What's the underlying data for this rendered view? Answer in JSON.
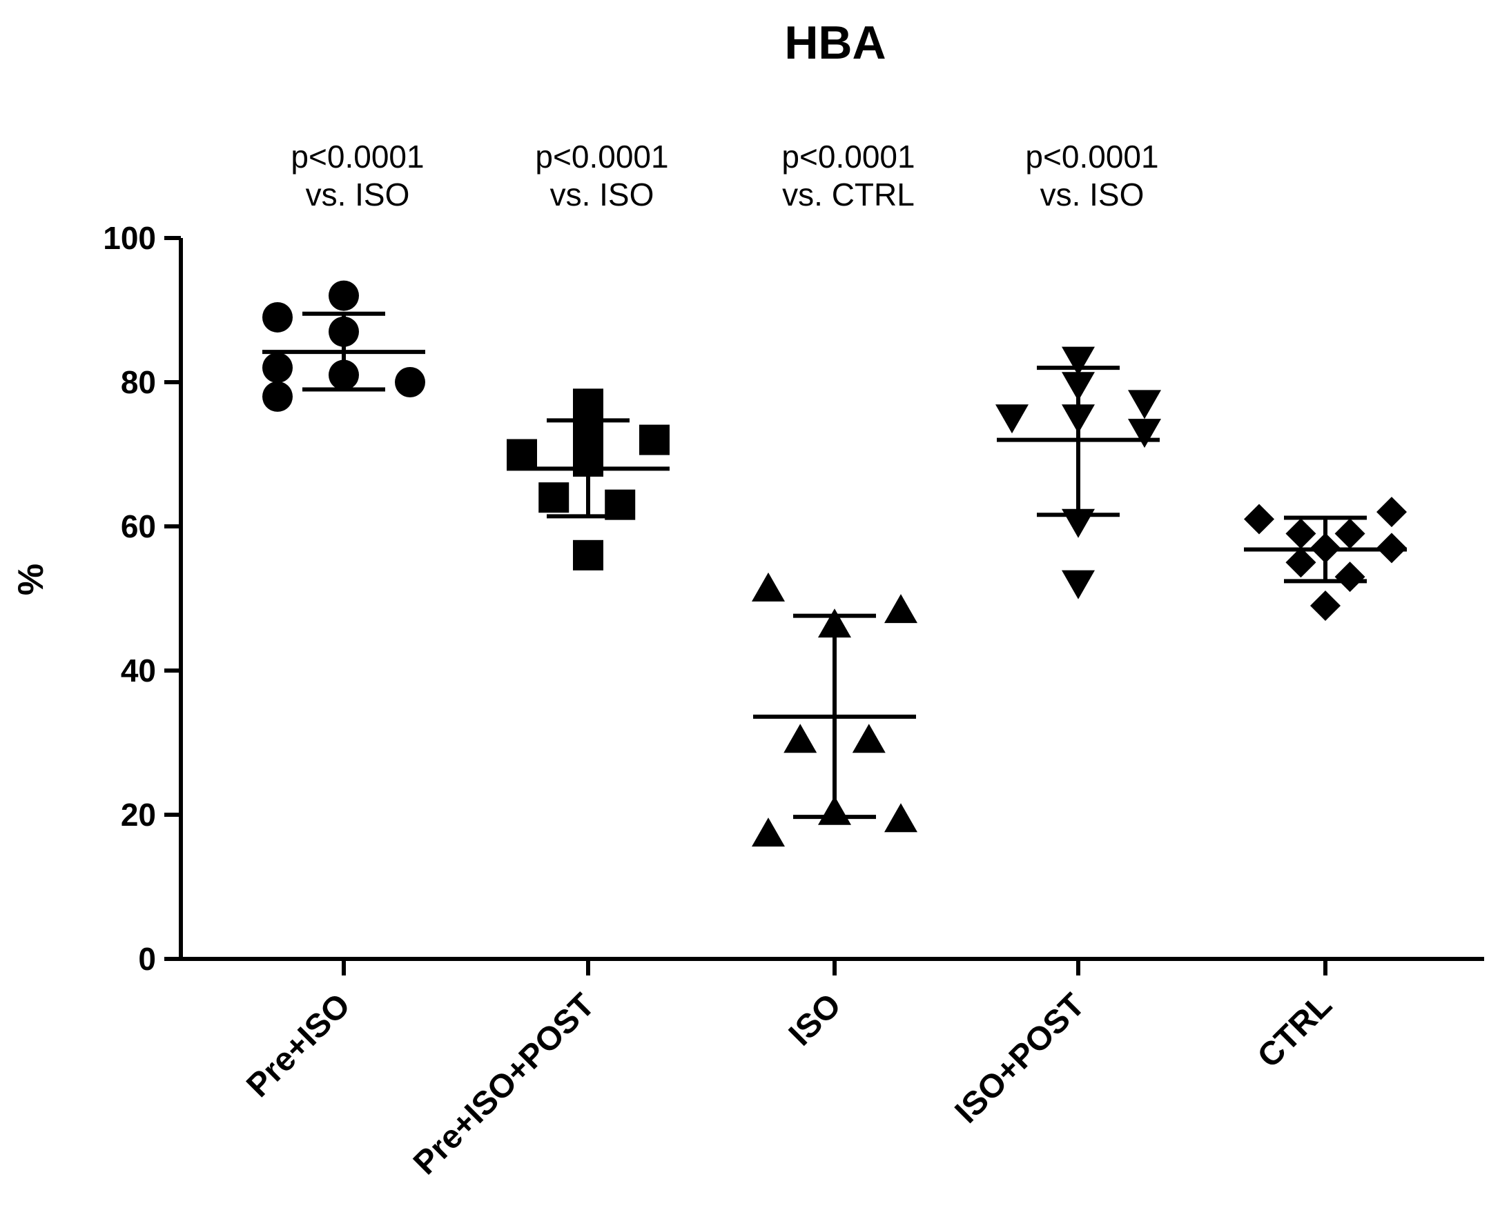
{
  "chart_data": {
    "type": "scatter",
    "title": "HBA",
    "xlabel": "",
    "ylabel": "%",
    "ylim": [
      0,
      100
    ],
    "yticks": [
      0,
      20,
      40,
      60,
      80,
      100
    ],
    "ytick_labels": [
      "0",
      "20",
      "40",
      "60",
      "80",
      "100"
    ],
    "grid": false,
    "legend": "none",
    "categories": [
      "Pre+ISO",
      "Pre+ISO+POST",
      "ISO",
      "ISO+POST",
      "CTRL"
    ],
    "series": [
      {
        "name": "Pre+ISO",
        "marker": "circle",
        "points": [
          {
            "offset": -0.27,
            "y": 89
          },
          {
            "offset": -0.27,
            "y": 82
          },
          {
            "offset": -0.27,
            "y": 78
          },
          {
            "offset": 0.0,
            "y": 92
          },
          {
            "offset": 0.0,
            "y": 87
          },
          {
            "offset": 0.0,
            "y": 81
          },
          {
            "offset": 0.27,
            "y": 80
          }
        ],
        "mean": 84.2,
        "sd_upper": 89.5,
        "sd_lower": 79
      },
      {
        "name": "Pre+ISO+POST",
        "marker": "square",
        "points": [
          {
            "offset": -0.27,
            "y": 70
          },
          {
            "offset": -0.14,
            "y": 64
          },
          {
            "offset": 0.0,
            "y": 77
          },
          {
            "offset": 0.0,
            "y": 73
          },
          {
            "offset": 0.0,
            "y": 69
          },
          {
            "offset": 0.0,
            "y": 56
          },
          {
            "offset": 0.13,
            "y": 63
          },
          {
            "offset": 0.27,
            "y": 72
          }
        ],
        "mean": 68,
        "sd_upper": 74.7,
        "sd_lower": 61.4
      },
      {
        "name": "ISO",
        "marker": "triangle-up",
        "points": [
          {
            "offset": -0.27,
            "y": 51.5
          },
          {
            "offset": -0.27,
            "y": 17.5
          },
          {
            "offset": -0.14,
            "y": 30.5
          },
          {
            "offset": 0.0,
            "y": 46.5
          },
          {
            "offset": 0.0,
            "y": 20.5
          },
          {
            "offset": 0.14,
            "y": 30.5
          },
          {
            "offset": 0.27,
            "y": 48.5
          },
          {
            "offset": 0.27,
            "y": 19.5
          }
        ],
        "mean": 33.6,
        "sd_upper": 47.6,
        "sd_lower": 19.7
      },
      {
        "name": "ISO+POST",
        "marker": "triangle-down",
        "points": [
          {
            "offset": -0.27,
            "y": 75
          },
          {
            "offset": 0.0,
            "y": 83
          },
          {
            "offset": 0.0,
            "y": 79.5
          },
          {
            "offset": 0.0,
            "y": 75
          },
          {
            "offset": 0.0,
            "y": 60.5
          },
          {
            "offset": 0.0,
            "y": 52
          },
          {
            "offset": 0.27,
            "y": 77
          },
          {
            "offset": 0.27,
            "y": 73
          }
        ],
        "mean": 72,
        "sd_upper": 82,
        "sd_lower": 61.6
      },
      {
        "name": "CTRL",
        "marker": "diamond",
        "points": [
          {
            "offset": -0.27,
            "y": 61
          },
          {
            "offset": -0.1,
            "y": 59
          },
          {
            "offset": -0.1,
            "y": 55
          },
          {
            "offset": 0.0,
            "y": 49
          },
          {
            "offset": 0.0,
            "y": 57
          },
          {
            "offset": 0.1,
            "y": 59
          },
          {
            "offset": 0.1,
            "y": 53
          },
          {
            "offset": 0.27,
            "y": 62
          },
          {
            "offset": 0.27,
            "y": 57
          }
        ],
        "mean": 56.8,
        "sd_upper": 61.2,
        "sd_lower": 52.4
      }
    ],
    "annotations": [
      {
        "category": "Pre+ISO",
        "line1": "p<0.0001",
        "line2": "vs. ISO"
      },
      {
        "category": "Pre+ISO+POST",
        "line1": "p<0.0001",
        "line2": "vs. ISO"
      },
      {
        "category": "ISO",
        "line1": "p<0.0001",
        "line2": "vs. CTRL"
      },
      {
        "category": "ISO+POST",
        "line1": "p<0.0001",
        "line2": "vs. ISO"
      }
    ]
  }
}
